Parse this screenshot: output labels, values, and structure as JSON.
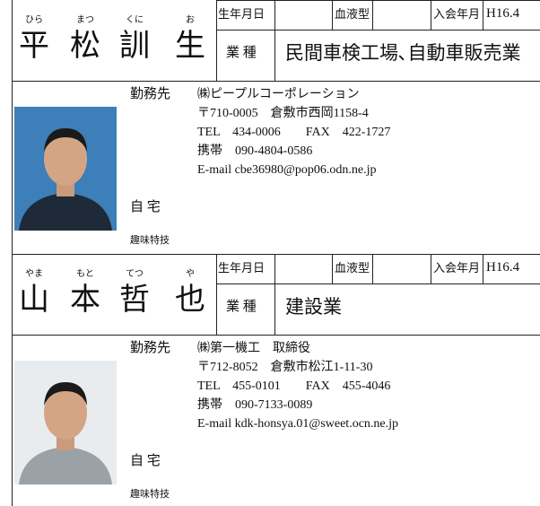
{
  "entries": [
    {
      "name": [
        {
          "kanji": "平",
          "reading": "ひら"
        },
        {
          "kanji": "松",
          "reading": "まつ"
        },
        {
          "kanji": "訓",
          "reading": "くに"
        },
        {
          "kanji": "生",
          "reading": "お"
        }
      ],
      "birth_label": "生年月日",
      "blood_label": "血液型",
      "join_label": "入会年月",
      "join_value": "H16.4",
      "occupation_label": "業 種",
      "occupation": "民間車検工場､自動車販売業",
      "work_label": "勤務先",
      "work_lines": [
        "㈱ピープルコーポレーション",
        "〒710-0005　倉敷市西岡1158-4",
        "TEL　434-0006　　FAX　422-1727",
        "携帯　090-4804-0586",
        "E-mail cbe36980@pop06.odn.ne.jp"
      ],
      "home_label": "自 宅",
      "hobby_label": "趣味特技"
    },
    {
      "name": [
        {
          "kanji": "山",
          "reading": "やま"
        },
        {
          "kanji": "本",
          "reading": "もと"
        },
        {
          "kanji": "哲",
          "reading": "てつ"
        },
        {
          "kanji": "也",
          "reading": "や"
        }
      ],
      "birth_label": "生年月日",
      "blood_label": "血液型",
      "join_label": "入会年月",
      "join_value": "H16.4",
      "occupation_label": "業 種",
      "occupation": "建設業",
      "work_label": "勤務先",
      "work_lines": [
        "㈱第一機工　取締役",
        "〒712-8052　倉敷市松江1-11-30",
        "TEL　455-0101　　FAX　455-4046",
        "携帯　090-7133-0089",
        "E-mail kdk-honsya.01@sweet.ocn.ne.jp"
      ],
      "home_label": "自 宅",
      "hobby_label": "趣味特技"
    }
  ]
}
